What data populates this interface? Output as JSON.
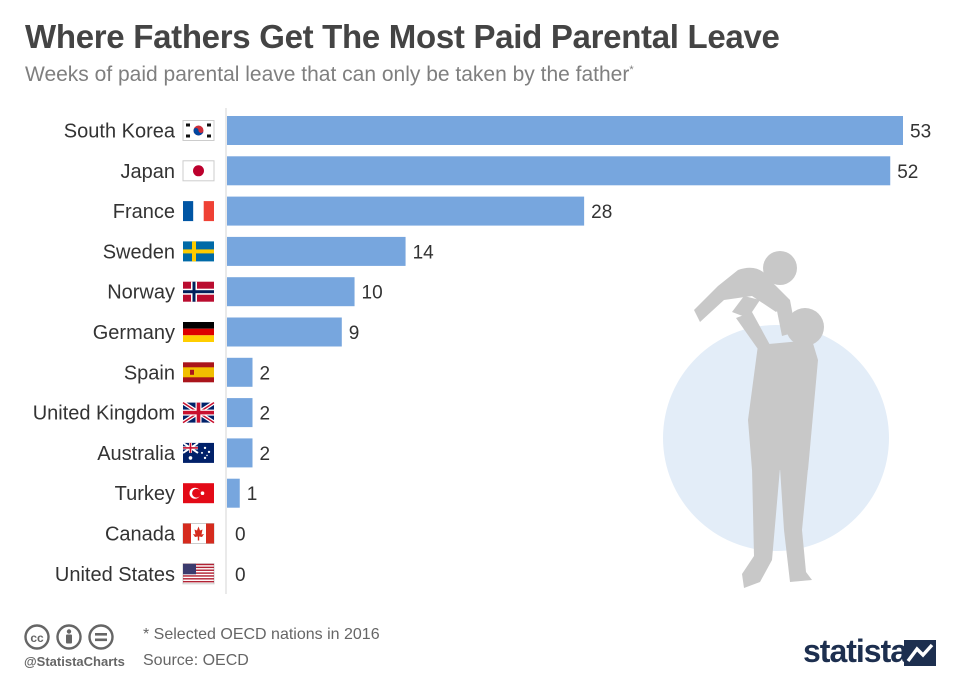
{
  "header": {
    "title": "Where Fathers Get The Most Paid Parental Leave",
    "subtitle": "Weeks of paid parental leave that can only be taken by the father",
    "subtitle_mark": "*"
  },
  "chart_data": {
    "type": "bar",
    "orientation": "horizontal",
    "title": "Where Fathers Get The Most Paid Parental Leave",
    "subtitle": "Weeks of paid parental leave that can only be taken by the father*",
    "xlabel": "",
    "ylabel": "",
    "xlim": [
      0,
      53
    ],
    "categories": [
      "South Korea",
      "Japan",
      "France",
      "Sweden",
      "Norway",
      "Germany",
      "Spain",
      "United Kingdom",
      "Australia",
      "Turkey",
      "Canada",
      "United States"
    ],
    "values": [
      53,
      52,
      28,
      14,
      10,
      9,
      2,
      2,
      2,
      1,
      0,
      0
    ],
    "flags": [
      "south-korea-flag-icon",
      "japan-flag-icon",
      "france-flag-icon",
      "sweden-flag-icon",
      "norway-flag-icon",
      "germany-flag-icon",
      "spain-flag-icon",
      "united-kingdom-flag-icon",
      "australia-flag-icon",
      "turkey-flag-icon",
      "canada-flag-icon",
      "united-states-flag-icon"
    ],
    "bar_color": "#77a6de"
  },
  "footer": {
    "footnote": "* Selected OECD nations in 2016",
    "source": "Source: OECD",
    "handle": "@StatistaCharts",
    "brand": "statista"
  },
  "colors": {
    "bar": "#77a6de",
    "illustration_circle": "#e3edf8",
    "silhouette": "#c8c8c8",
    "brand": "#1d2f4f"
  }
}
